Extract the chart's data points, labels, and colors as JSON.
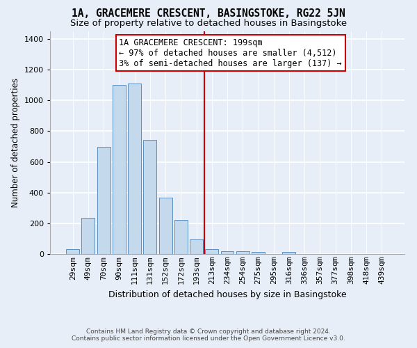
{
  "title": "1A, GRACEMERE CRESCENT, BASINGSTOKE, RG22 5JN",
  "subtitle": "Size of property relative to detached houses in Basingstoke",
  "xlabel": "Distribution of detached houses by size in Basingstoke",
  "ylabel": "Number of detached properties",
  "footer_line1": "Contains HM Land Registry data © Crown copyright and database right 2024.",
  "footer_line2": "Contains public sector information licensed under the Open Government Licence v3.0.",
  "categories": [
    "29sqm",
    "49sqm",
    "70sqm",
    "90sqm",
    "111sqm",
    "131sqm",
    "152sqm",
    "172sqm",
    "193sqm",
    "213sqm",
    "234sqm",
    "254sqm",
    "275sqm",
    "295sqm",
    "316sqm",
    "336sqm",
    "357sqm",
    "377sqm",
    "398sqm",
    "418sqm",
    "439sqm"
  ],
  "values": [
    30,
    235,
    700,
    1100,
    1110,
    745,
    365,
    220,
    95,
    30,
    20,
    20,
    15,
    0,
    15,
    0,
    0,
    0,
    0,
    0,
    0
  ],
  "bar_color": "#c5d9ed",
  "bar_edge_color": "#5a8fc0",
  "vline_x": 8.5,
  "annotation_line1": "1A GRACEMERE CRESCENT: 199sqm",
  "annotation_line2": "← 97% of detached houses are smaller (4,512)",
  "annotation_line3": "3% of semi-detached houses are larger (137) →",
  "annotation_box_facecolor": "#ffffff",
  "annotation_box_edgecolor": "#cc0000",
  "vline_color": "#cc0000",
  "ylim": [
    0,
    1450
  ],
  "yticks": [
    0,
    200,
    400,
    600,
    800,
    1000,
    1200,
    1400
  ],
  "background_color": "#e8eef8",
  "title_fontsize": 10.5,
  "subtitle_fontsize": 9.5,
  "annotation_fontsize": 8.5,
  "ylabel_fontsize": 8.5,
  "xlabel_fontsize": 9,
  "tick_fontsize": 8,
  "footer_fontsize": 6.5
}
